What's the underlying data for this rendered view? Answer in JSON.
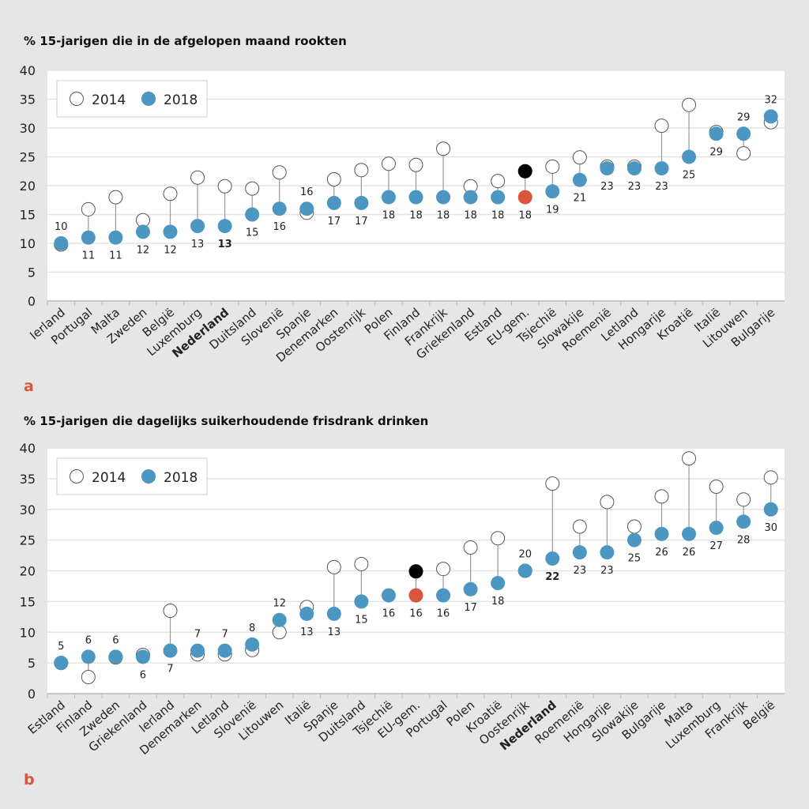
{
  "colors": {
    "c2014_fill": "#ffffff",
    "c2018": "#4b97c1",
    "eu2014": "#000000",
    "eu2018": "#d9553b",
    "panel_label": "#d9553b"
  },
  "chart_data": [
    {
      "type": "scatter",
      "panel": "a",
      "title": "% 15-jarigen die in de afgelopen maand rookten",
      "ylim": [
        0,
        40
      ],
      "yticks": [
        0,
        5,
        10,
        15,
        20,
        25,
        30,
        35,
        40
      ],
      "grid": true,
      "legend": {
        "placement": "top-left",
        "entries": [
          "2014",
          "2018"
        ]
      },
      "highlight": "Nederland",
      "average": "EU-gem.",
      "categories": [
        "Ierland",
        "Portugal",
        "Malta",
        "Zweden",
        "België",
        "Luxemburg",
        "Nederland",
        "Duitsland",
        "Slovenië",
        "Spanje",
        "Denemarken",
        "Oostenrijk",
        "Polen",
        "Finland",
        "Frankrijk",
        "Griekenland",
        "Estland",
        "EU-gem.",
        "Tsjechië",
        "Slowakije",
        "Roemenië",
        "Letland",
        "Hongarije",
        "Kroatië",
        "Italië",
        "Litouwen",
        "Bulgarije"
      ],
      "series": [
        {
          "name": "2014",
          "values": [
            9.8,
            15.9,
            18,
            14,
            18.6,
            21.4,
            19.9,
            19.5,
            22.3,
            15.3,
            21.1,
            22.7,
            23.8,
            23.6,
            26.4,
            19.9,
            20.8,
            22.5,
            23.3,
            24.9,
            23.3,
            23.3,
            30.4,
            34,
            29.3,
            25.6,
            31
          ]
        },
        {
          "name": "2018",
          "values": [
            10,
            11,
            11,
            12,
            12,
            13,
            13,
            15,
            16,
            16,
            17,
            17,
            18,
            18,
            18,
            18,
            18,
            18,
            19,
            21,
            23,
            23,
            23,
            25,
            29,
            29,
            32
          ]
        }
      ]
    },
    {
      "type": "scatter",
      "panel": "b",
      "title": "% 15-jarigen die dagelijks suikerhoudende frisdrank drinken",
      "ylim": [
        0,
        40
      ],
      "yticks": [
        0,
        5,
        10,
        15,
        20,
        25,
        30,
        35,
        40
      ],
      "grid": true,
      "legend": {
        "placement": "top-left",
        "entries": [
          "2014",
          "2018"
        ]
      },
      "highlight": "Nederland",
      "average": "EU-gem.",
      "categories": [
        "Estland",
        "Finland",
        "Zweden",
        "Griekenland",
        "Ierland",
        "Denemarken",
        "Letland",
        "Slovenië",
        "Litouwen",
        "Italië",
        "Spanje",
        "Duitsland",
        "Tsjechië",
        "EU-gem.",
        "Portugal",
        "Polen",
        "Kroatië",
        "Oostenrijk",
        "Nederland",
        "Roemenië",
        "Hongarije",
        "Slowakije",
        "Bulgarije",
        "Malta",
        "Luxemburg",
        "Frankrijk",
        "België"
      ],
      "series": [
        {
          "name": "2014",
          "values": [
            5,
            2.7,
            5.9,
            6.3,
            13.5,
            6.4,
            6.4,
            7.1,
            10,
            14.1,
            20.6,
            21.1,
            null,
            19.9,
            20.3,
            23.8,
            25.3,
            20,
            34.2,
            27.2,
            31.2,
            27.2,
            32.1,
            38.3,
            33.7,
            31.6,
            35.2
          ]
        },
        {
          "name": "2018",
          "values": [
            5,
            6,
            6,
            6,
            7,
            7,
            7,
            8,
            12,
            13,
            13,
            15,
            16,
            16,
            16,
            17,
            18,
            20,
            22,
            23,
            23,
            25,
            26,
            26,
            27,
            28,
            30
          ]
        }
      ]
    }
  ]
}
